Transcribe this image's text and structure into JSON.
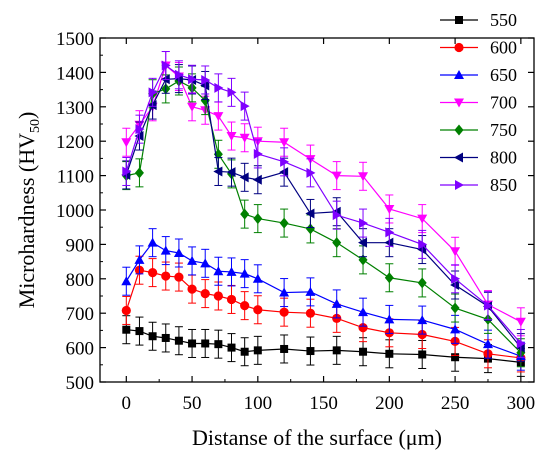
{
  "chart_data": {
    "type": "line",
    "xlabel": "Distanse of the surface (μm)",
    "ylabel_main": "Microhardness (HV",
    "ylabel_sub": "50",
    "ylabel_close": ")",
    "xlim": [
      -20,
      310
    ],
    "ylim": [
      500,
      1500
    ],
    "xticks": [
      0,
      50,
      100,
      150,
      200,
      250,
      300
    ],
    "yticks": [
      500,
      600,
      700,
      800,
      900,
      1000,
      1100,
      1200,
      1300,
      1400,
      1500
    ],
    "legend_position": "top-right",
    "series": [
      {
        "name": "550",
        "color": "#000000",
        "marker": "square",
        "x": [
          0,
          10,
          20,
          30,
          40,
          50,
          60,
          70,
          80,
          90,
          100,
          120,
          140,
          160,
          180,
          200,
          225,
          250,
          275,
          300
        ],
        "y": [
          652,
          648,
          633,
          628,
          620,
          612,
          612,
          610,
          600,
          588,
          592,
          596,
          590,
          592,
          588,
          582,
          580,
          572,
          568,
          557
        ]
      },
      {
        "name": "600",
        "color": "#ff0000",
        "marker": "circle",
        "x": [
          0,
          10,
          20,
          30,
          40,
          50,
          60,
          70,
          80,
          90,
          100,
          120,
          140,
          160,
          180,
          200,
          225,
          250,
          275,
          300
        ],
        "y": [
          708,
          825,
          818,
          808,
          805,
          770,
          757,
          750,
          740,
          722,
          710,
          703,
          700,
          685,
          658,
          643,
          638,
          618,
          582,
          570
        ]
      },
      {
        "name": "650",
        "color": "#0000ff",
        "marker": "triangle-up",
        "x": [
          0,
          10,
          20,
          30,
          40,
          50,
          60,
          70,
          80,
          90,
          100,
          120,
          140,
          160,
          180,
          200,
          225,
          250,
          275,
          300
        ],
        "y": [
          793,
          855,
          905,
          882,
          875,
          852,
          845,
          822,
          820,
          815,
          800,
          760,
          762,
          727,
          703,
          682,
          680,
          653,
          610,
          575
        ]
      },
      {
        "name": "700",
        "color": "#ff00ff",
        "marker": "triangle-down",
        "x": [
          0,
          10,
          20,
          30,
          40,
          50,
          60,
          70,
          80,
          90,
          100,
          120,
          140,
          160,
          180,
          200,
          225,
          250,
          275,
          300
        ],
        "y": [
          1197,
          1248,
          1300,
          1420,
          1388,
          1300,
          1290,
          1273,
          1215,
          1210,
          1200,
          1197,
          1148,
          1100,
          1098,
          1003,
          975,
          880,
          725,
          675
        ]
      },
      {
        "name": "750",
        "color": "#008000",
        "marker": "diamond",
        "x": [
          0,
          10,
          20,
          30,
          40,
          50,
          60,
          70,
          80,
          90,
          100,
          120,
          140,
          160,
          180,
          200,
          225,
          250,
          275,
          300
        ],
        "y": [
          1100,
          1108,
          1338,
          1352,
          1375,
          1355,
          1318,
          1162,
          1105,
          988,
          975,
          962,
          945,
          905,
          855,
          803,
          788,
          715,
          682,
          585
        ]
      },
      {
        "name": "800",
        "color": "#000080",
        "marker": "triangle-left",
        "x": [
          0,
          10,
          20,
          30,
          40,
          50,
          60,
          70,
          80,
          90,
          100,
          120,
          140,
          160,
          180,
          200,
          225,
          250,
          275,
          300
        ],
        "y": [
          1102,
          1215,
          1305,
          1380,
          1382,
          1378,
          1362,
          1112,
          1110,
          1095,
          1088,
          1110,
          990,
          995,
          905,
          905,
          885,
          782,
          720,
          600
        ]
      },
      {
        "name": "850",
        "color": "#8000ff",
        "marker": "triangle-right",
        "x": [
          0,
          10,
          20,
          30,
          40,
          50,
          60,
          70,
          80,
          90,
          100,
          120,
          140,
          160,
          180,
          200,
          225,
          250,
          275,
          300
        ],
        "y": [
          1112,
          1235,
          1342,
          1420,
          1393,
          1380,
          1378,
          1355,
          1342,
          1302,
          1163,
          1140,
          1108,
          985,
          962,
          935,
          900,
          800,
          722,
          612
        ]
      }
    ]
  }
}
